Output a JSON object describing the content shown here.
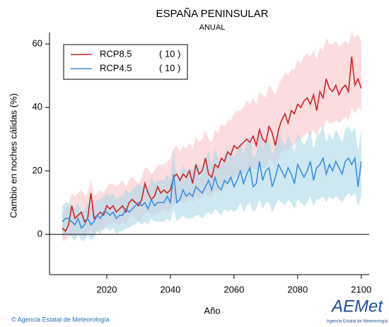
{
  "chart_data": {
    "type": "line",
    "title": "ESPAÑA PENINSULAR",
    "subtitle": "ANUAL",
    "x_label": "Año",
    "y_label": "Cambio en noches cálidas (%)",
    "xlim": [
      2002,
      2102.5
    ],
    "xticks": [
      2020,
      2040,
      2060,
      2080,
      2100
    ],
    "ylim": [
      -12.7,
      63.6
    ],
    "yticks": [
      0,
      20,
      40,
      60
    ],
    "hline": 0,
    "legend": "top-left",
    "x": [
      2006,
      2007,
      2008,
      2009,
      2010,
      2011,
      2012,
      2013,
      2014,
      2015,
      2016,
      2017,
      2018,
      2019,
      2020,
      2021,
      2022,
      2023,
      2024,
      2025,
      2026,
      2027,
      2028,
      2029,
      2030,
      2031,
      2032,
      2033,
      2034,
      2035,
      2036,
      2037,
      2038,
      2039,
      2040,
      2041,
      2042,
      2043,
      2044,
      2045,
      2046,
      2047,
      2048,
      2049,
      2050,
      2051,
      2052,
      2053,
      2054,
      2055,
      2056,
      2057,
      2058,
      2059,
      2060,
      2061,
      2062,
      2063,
      2064,
      2065,
      2066,
      2067,
      2068,
      2069,
      2070,
      2071,
      2072,
      2073,
      2074,
      2075,
      2076,
      2077,
      2078,
      2079,
      2080,
      2081,
      2082,
      2083,
      2084,
      2085,
      2086,
      2087,
      2088,
      2089,
      2090,
      2091,
      2092,
      2093,
      2094,
      2095,
      2096,
      2097,
      2098,
      2099,
      2100
    ],
    "series": [
      {
        "name": "RCP8.5",
        "note": "( 10 )",
        "color": "#cc2222",
        "band_color": "#f9c6cb",
        "values": [
          2,
          1,
          3,
          9,
          5,
          6,
          7,
          4,
          5,
          13,
          5,
          6,
          7,
          6,
          9,
          8,
          9,
          7,
          8,
          9,
          7,
          10,
          11,
          10,
          9,
          11,
          16,
          13,
          11,
          12,
          15,
          13,
          14,
          13,
          14,
          18,
          19,
          17,
          19,
          18,
          20,
          16,
          22,
          19,
          20,
          24,
          19,
          18,
          22,
          21,
          24,
          23,
          26,
          25,
          28,
          27,
          28,
          29,
          30,
          29,
          31,
          28,
          33,
          30,
          29,
          34,
          32,
          28,
          33,
          36,
          38,
          35,
          39,
          38,
          41,
          40,
          42,
          43,
          41,
          44,
          39,
          45,
          43,
          49,
          46,
          45,
          47,
          44,
          46,
          47,
          45,
          56,
          47,
          49,
          46
        ],
        "lower": [
          -2,
          -2,
          -1,
          0,
          -1,
          0,
          1,
          -1,
          0,
          2,
          0,
          1,
          2,
          1,
          3,
          3,
          4,
          3,
          3,
          4,
          3,
          5,
          6,
          5,
          4,
          5,
          7,
          7,
          6,
          6,
          7,
          7,
          8,
          7,
          8,
          9,
          10,
          10,
          10,
          10,
          11,
          10,
          12,
          11,
          12,
          13,
          12,
          12,
          14,
          13,
          15,
          15,
          17,
          16,
          18,
          18,
          19,
          19,
          20,
          20,
          21,
          20,
          22,
          21,
          21,
          24,
          23,
          21,
          24,
          26,
          27,
          26,
          28,
          28,
          30,
          30,
          31,
          32,
          31,
          33,
          31,
          34,
          33,
          36,
          35,
          35,
          36,
          35,
          36,
          37,
          36,
          40,
          38,
          40,
          39
        ],
        "upper": [
          6,
          8,
          9,
          13,
          12,
          13,
          14,
          12,
          13,
          17,
          12,
          13,
          14,
          13,
          15,
          16,
          16,
          15,
          16,
          17,
          15,
          17,
          18,
          17,
          16,
          18,
          21,
          21,
          19,
          20,
          22,
          22,
          22,
          23,
          24,
          27,
          28,
          26,
          28,
          27,
          29,
          27,
          31,
          29,
          30,
          33,
          30,
          29,
          33,
          32,
          35,
          34,
          36,
          36,
          38,
          39,
          39,
          40,
          42,
          41,
          43,
          41,
          45,
          44,
          43,
          47,
          46,
          44,
          47,
          49,
          51,
          50,
          52,
          52,
          55,
          54,
          56,
          57,
          56,
          58,
          55,
          59,
          58,
          62,
          60,
          60,
          61,
          59,
          60,
          61,
          60,
          64,
          62,
          63,
          61
        ]
      },
      {
        "name": "RCP4.5",
        "note": "( 10 )",
        "color": "#3a8ee0",
        "band_color": "#acd9e8",
        "values": [
          4,
          5,
          5,
          4,
          3,
          5,
          2,
          3,
          5,
          3,
          4,
          6,
          5,
          7,
          7,
          6,
          7,
          5,
          6,
          6,
          8,
          7,
          8,
          9,
          10,
          9,
          10,
          8,
          11,
          9,
          10,
          10,
          10,
          12,
          10,
          19,
          10,
          11,
          14,
          12,
          13,
          12,
          15,
          14,
          13,
          15,
          17,
          14,
          18,
          15,
          14,
          17,
          16,
          18,
          15,
          17,
          20,
          16,
          19,
          21,
          15,
          16,
          23,
          17,
          20,
          21,
          15,
          18,
          22,
          20,
          18,
          21,
          19,
          16,
          22,
          20,
          18,
          20,
          23,
          17,
          21,
          22,
          24,
          19,
          22,
          20,
          23,
          21,
          19,
          23,
          24,
          22,
          24,
          15,
          23
        ],
        "lower": [
          -1,
          0,
          0,
          -1,
          -2,
          0,
          -2,
          -2,
          0,
          -2,
          -1,
          1,
          0,
          2,
          2,
          1,
          2,
          0,
          1,
          1,
          2,
          2,
          3,
          3,
          4,
          3,
          4,
          3,
          5,
          4,
          4,
          4,
          4,
          5,
          4,
          8,
          4,
          5,
          6,
          5,
          5,
          5,
          6,
          6,
          5,
          6,
          7,
          6,
          8,
          7,
          6,
          8,
          7,
          8,
          7,
          8,
          10,
          7,
          9,
          10,
          7,
          8,
          11,
          8,
          10,
          10,
          7,
          9,
          11,
          10,
          9,
          11,
          10,
          8,
          11,
          10,
          9,
          10,
          12,
          9,
          11,
          11,
          12,
          10,
          12,
          11,
          12,
          11,
          10,
          12,
          13,
          12,
          13,
          9,
          12
        ],
        "upper": [
          9,
          10,
          10,
          9,
          8,
          10,
          7,
          8,
          10,
          9,
          9,
          11,
          11,
          12,
          13,
          12,
          13,
          11,
          12,
          12,
          14,
          13,
          14,
          15,
          16,
          15,
          17,
          14,
          18,
          16,
          17,
          17,
          17,
          19,
          17,
          27,
          17,
          18,
          22,
          20,
          21,
          20,
          23,
          22,
          21,
          24,
          26,
          22,
          27,
          24,
          22,
          26,
          25,
          27,
          24,
          26,
          30,
          25,
          29,
          31,
          24,
          25,
          33,
          27,
          30,
          31,
          25,
          28,
          32,
          30,
          28,
          31,
          29,
          26,
          32,
          30,
          28,
          30,
          33,
          27,
          31,
          32,
          34,
          29,
          32,
          30,
          33,
          31,
          29,
          33,
          34,
          32,
          34,
          26,
          33
        ]
      }
    ]
  },
  "footer": {
    "credit": "© Agencia Estatal de Meteorología",
    "logo": "AEMet",
    "logo_caption": "Agencia Estatal de Meteorología"
  }
}
